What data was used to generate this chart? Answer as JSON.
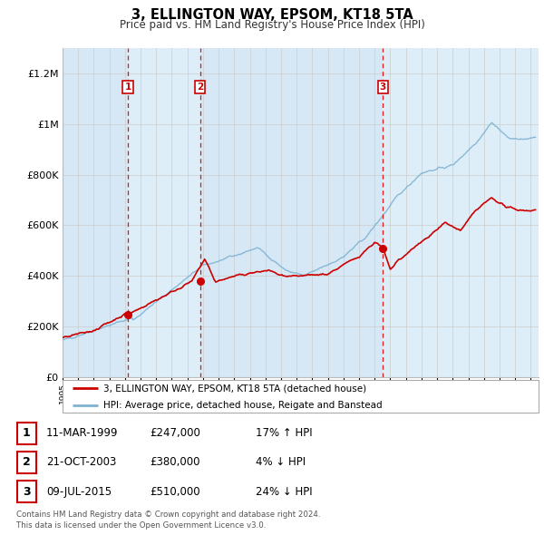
{
  "title": "3, ELLINGTON WAY, EPSOM, KT18 5TA",
  "subtitle": "Price paid vs. HM Land Registry's House Price Index (HPI)",
  "ylim": [
    0,
    1300000
  ],
  "yticks": [
    0,
    200000,
    400000,
    600000,
    800000,
    1000000,
    1200000
  ],
  "ytick_labels": [
    "£0",
    "£200K",
    "£400K",
    "£600K",
    "£800K",
    "£1M",
    "£1.2M"
  ],
  "sale_dates_num": [
    1999.19,
    2003.81,
    2015.52
  ],
  "sale_prices": [
    247000,
    380000,
    510000
  ],
  "sale_color": "#cc0000",
  "hpi_color": "#7fb3d3",
  "plot_bg": "#e8f0f8",
  "grid_color": "#cccccc",
  "legend_line1": "3, ELLINGTON WAY, EPSOM, KT18 5TA (detached house)",
  "legend_line2": "HPI: Average price, detached house, Reigate and Banstead",
  "table_entries": [
    {
      "num": "1",
      "date": "11-MAR-1999",
      "price": "£247,000",
      "hpi": "17% ↑ HPI"
    },
    {
      "num": "2",
      "date": "21-OCT-2003",
      "price": "£380,000",
      "hpi": "4% ↓ HPI"
    },
    {
      "num": "3",
      "date": "09-JUL-2015",
      "price": "£510,000",
      "hpi": "24% ↓ HPI"
    }
  ],
  "footer": "Contains HM Land Registry data © Crown copyright and database right 2024.\nThis data is licensed under the Open Government Licence v3.0.",
  "xstart": 1995.0,
  "xend": 2025.5
}
